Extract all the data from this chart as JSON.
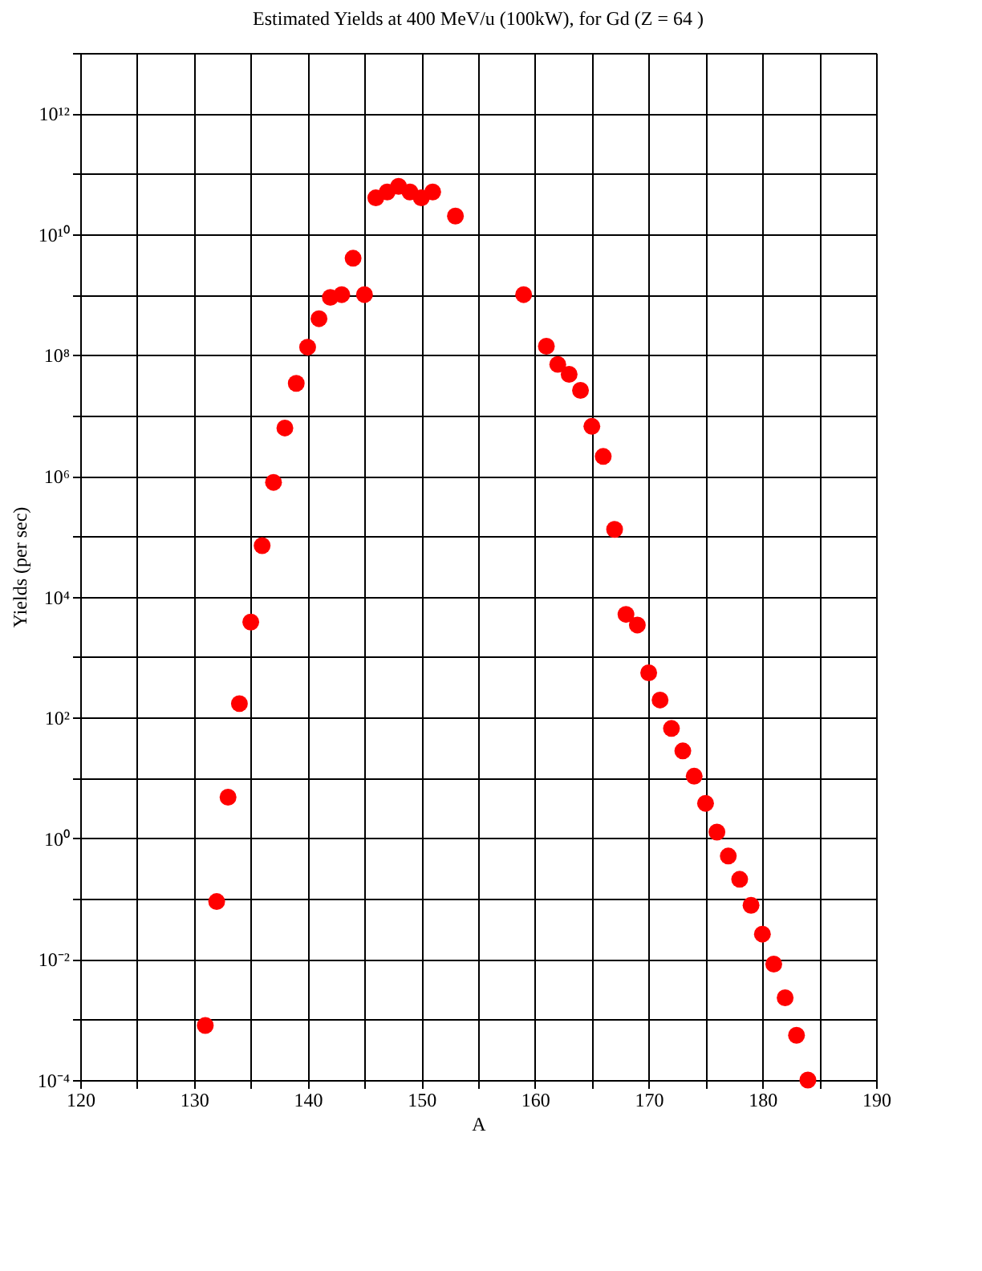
{
  "chart_data": {
    "type": "scatter",
    "title": "Estimated Yields at 400 MeV/u (100kW), for Gd (Z = 64 )",
    "xlabel": "A",
    "ylabel": "Yields (per sec)",
    "log": "y",
    "grid": true,
    "marker": "circle",
    "legend": false,
    "x": [
      131,
      132,
      133,
      134,
      135,
      136,
      137,
      138,
      139,
      140,
      141,
      142,
      143,
      144,
      145,
      146,
      147,
      148,
      149,
      150,
      151,
      153,
      159,
      161,
      162,
      163,
      164,
      165,
      166,
      167,
      168,
      169,
      170,
      171,
      172,
      173,
      174,
      175,
      176,
      177,
      178,
      179,
      180,
      181,
      182,
      183,
      184
    ],
    "series": [
      {
        "color": "#ff0000",
        "values": [
          0.0008,
          0.09,
          4.8,
          170,
          3800,
          70000,
          780000,
          6200000,
          34000000,
          135000000,
          400000000,
          900000000,
          1000000000,
          4000000000,
          1000000000,
          40000000000,
          50000000000,
          62000000000,
          50000000000,
          40000000000,
          50000000000,
          20000000000,
          1000000000,
          140000000,
          70000000,
          48000000,
          26000000,
          6600000,
          2100000,
          130000,
          5100,
          3400,
          550,
          195,
          66,
          28,
          10.7,
          3.8,
          1.27,
          0.51,
          0.21,
          0.078,
          0.026,
          0.0083,
          0.0023,
          0.00055,
          0.0001
        ]
      }
    ],
    "xlim": [
      120,
      190
    ],
    "xticks": [
      120,
      {
        "value": 125,
        "label": null
      },
      130,
      {
        "value": 135,
        "label": null
      },
      140,
      {
        "value": 145,
        "label": null
      },
      150,
      {
        "value": 155,
        "label": null
      },
      160,
      {
        "value": 165,
        "label": null
      },
      170,
      {
        "value": 175,
        "label": null
      },
      180,
      {
        "value": 185,
        "label": null
      },
      190
    ],
    "ylim": [
      0.0001,
      10000000000000
    ],
    "yticks": [
      {
        "value": 0.0001,
        "label": "10⁻⁴"
      },
      {
        "value": 0.001,
        "label": null
      },
      {
        "value": 0.01,
        "label": "10⁻²"
      },
      {
        "value": 0.1,
        "label": null
      },
      {
        "value": 1,
        "label": "10⁰"
      },
      {
        "value": 10,
        "label": null
      },
      {
        "value": 100,
        "label": "10²"
      },
      {
        "value": 1000,
        "label": null
      },
      {
        "value": 10000,
        "label": "10⁴"
      },
      {
        "value": 100000,
        "label": null
      },
      {
        "value": 1000000,
        "label": "10⁶"
      },
      {
        "value": 10000000,
        "label": null
      },
      {
        "value": 100000000,
        "label": "10⁸"
      },
      {
        "value": 1000000000,
        "label": null
      },
      {
        "value": 10000000000,
        "label": "10¹⁰"
      },
      {
        "value": 100000000000,
        "label": null
      },
      {
        "value": 1000000000000,
        "label": "10¹²"
      },
      {
        "value": 10000000000000,
        "label": null
      }
    ]
  }
}
